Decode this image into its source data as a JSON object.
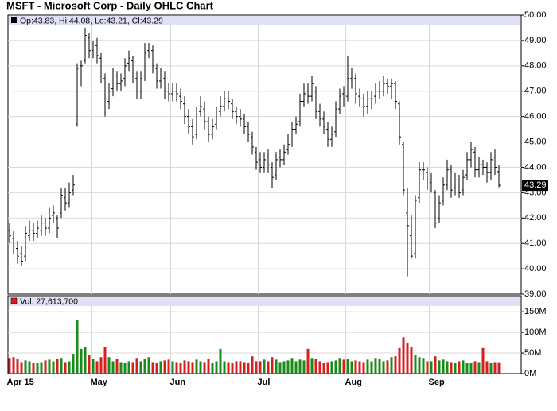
{
  "chart_data": [
    {
      "type": "ohlc",
      "title": "MSFT - Microsoft Corp - Daily OHLC Chart",
      "header": "Op:43.83, Hi:44.08, Lo:43.21, Cl:43.29",
      "categories": [
        "Apr 15",
        null,
        null,
        null,
        null,
        null,
        null,
        null,
        null,
        null,
        null,
        null,
        null,
        null,
        null,
        null,
        null,
        null,
        null,
        null,
        null,
        "May",
        null,
        null,
        null,
        null,
        null,
        null,
        null,
        null,
        null,
        null,
        null,
        null,
        null,
        null,
        null,
        null,
        null,
        null,
        null,
        "Jun",
        null,
        null,
        null,
        null,
        null,
        null,
        null,
        null,
        null,
        null,
        null,
        null,
        null,
        null,
        null,
        null,
        null,
        null,
        null,
        null,
        null,
        "Jul",
        null,
        null,
        null,
        null,
        null,
        null,
        null,
        null,
        null,
        null,
        null,
        null,
        null,
        null,
        null,
        null,
        null,
        null,
        null,
        null,
        null,
        "Aug",
        null,
        null,
        null,
        null,
        null,
        null,
        null,
        null,
        null,
        null,
        null,
        null,
        null,
        null,
        null,
        null,
        null,
        null,
        null,
        null,
        "Sep",
        null,
        null,
        null,
        null,
        null,
        null,
        null,
        null,
        null,
        null,
        null,
        null,
        null,
        null,
        null,
        null,
        null
      ],
      "open": [
        41.5,
        41.2,
        40.8,
        40.6,
        40.5,
        41.3,
        41.5,
        41.4,
        41.5,
        41.8,
        41.6,
        42.1,
        42.0,
        42.2,
        42.8,
        42.6,
        43.1,
        45.7,
        48.0,
        48.2,
        49.1,
        48.6,
        48.8,
        48.3,
        47.5,
        46.6,
        47.1,
        47.6,
        47.3,
        47.5,
        48.1,
        48.2,
        47.5,
        47.0,
        47.6,
        48.6,
        48.6,
        47.9,
        47.4,
        47.5,
        47.0,
        46.9,
        47.0,
        46.8,
        46.5,
        46.0,
        45.6,
        45.3,
        46.2,
        46.3,
        45.8,
        45.3,
        45.7,
        46.2,
        46.4,
        46.7,
        46.5,
        46.2,
        46.0,
        45.9,
        45.6,
        45.2,
        44.6,
        44.3,
        44.0,
        44.4,
        44.0,
        43.7,
        44.4,
        44.3,
        44.7,
        45.0,
        45.5,
        45.8,
        46.6,
        47.0,
        46.8,
        47.0,
        46.2,
        45.9,
        45.5,
        45.1,
        45.4,
        46.3,
        46.9,
        46.8,
        47.5,
        47.5,
        46.8,
        46.7,
        46.4,
        46.7,
        46.8,
        47.0,
        47.0,
        47.3,
        47.2,
        47.3,
        46.5,
        44.9,
        42.2,
        41.3,
        40.6,
        42.8,
        43.9,
        43.8,
        43.4,
        43.0,
        42.0,
        42.7,
        43.3,
        43.9,
        43.2,
        43.5,
        43.1,
        43.7,
        44.3,
        44.6,
        43.9,
        44.1,
        44.0,
        43.8,
        44.4,
        43.83
      ],
      "high": [
        41.8,
        41.5,
        41.1,
        40.9,
        41.7,
        41.9,
        41.8,
        41.9,
        42.1,
        42.0,
        42.4,
        42.5,
        42.1,
        43.2,
        43.2,
        43.4,
        43.7,
        48.1,
        48.2,
        49.5,
        49.3,
        49.0,
        49.1,
        48.5,
        47.7,
        47.3,
        47.9,
        47.8,
        47.7,
        48.3,
        48.6,
        48.4,
        47.8,
        47.8,
        48.9,
        48.9,
        48.8,
        48.1,
        47.9,
        47.8,
        47.3,
        47.3,
        47.3,
        47.1,
        46.8,
        46.3,
        45.9,
        46.4,
        46.8,
        46.6,
        46.0,
        45.9,
        46.4,
        46.8,
        47.0,
        47.0,
        46.7,
        46.4,
        46.3,
        46.1,
        45.8,
        45.4,
        44.8,
        44.6,
        44.6,
        44.7,
        44.2,
        44.6,
        44.7,
        44.9,
        45.3,
        45.8,
        46.0,
        46.9,
        47.3,
        47.3,
        47.6,
        47.2,
        46.5,
        46.2,
        45.8,
        45.6,
        46.6,
        47.1,
        47.2,
        48.4,
        47.9,
        47.7,
        47.1,
        46.9,
        47.0,
        47.0,
        47.3,
        47.4,
        47.6,
        47.5,
        47.5,
        47.4,
        46.6,
        45.0,
        43.2,
        42.1,
        42.9,
        44.2,
        44.2,
        44.0,
        43.8,
        43.1,
        42.9,
        43.6,
        44.3,
        44.1,
        43.8,
        43.7,
        43.9,
        44.6,
        45.0,
        44.8,
        44.4,
        44.3,
        44.2,
        44.6,
        44.7,
        44.08
      ],
      "low": [
        41.0,
        40.6,
        40.2,
        40.1,
        40.3,
        41.1,
        41.1,
        41.2,
        41.3,
        41.3,
        41.4,
        41.8,
        41.2,
        42.0,
        42.3,
        42.4,
        42.9,
        45.6,
        47.2,
        48.1,
        48.3,
        48.3,
        48.1,
        47.3,
        46.0,
        46.3,
        46.8,
        47.0,
        47.0,
        47.2,
        47.8,
        47.3,
        46.7,
        46.7,
        47.4,
        48.3,
        47.7,
        47.1,
        47.1,
        46.7,
        46.6,
        46.6,
        46.6,
        46.3,
        45.7,
        45.3,
        44.9,
        45.1,
        46.0,
        45.5,
        45.0,
        45.1,
        45.5,
        46.0,
        46.2,
        46.3,
        45.9,
        45.7,
        45.6,
        45.3,
        45.0,
        44.5,
        43.9,
        43.8,
        43.8,
        43.8,
        43.2,
        43.5,
        44.0,
        44.1,
        44.5,
        44.8,
        45.3,
        45.6,
        46.4,
        46.5,
        46.6,
        45.9,
        45.6,
        45.3,
        44.8,
        44.8,
        45.2,
        46.1,
        46.4,
        46.6,
        47.1,
        46.5,
        46.4,
        46.0,
        46.1,
        46.3,
        46.5,
        46.7,
        46.8,
        46.9,
        46.7,
        46.3,
        44.9,
        42.9,
        39.7,
        40.4,
        40.4,
        42.6,
        43.5,
        43.1,
        43.0,
        41.6,
        41.8,
        42.5,
        43.1,
        42.8,
        42.9,
        42.8,
        42.9,
        43.5,
        44.0,
        43.6,
        43.6,
        43.7,
        43.4,
        43.5,
        43.7,
        43.21
      ],
      "close": [
        41.3,
        40.9,
        40.5,
        40.3,
        41.4,
        41.5,
        41.4,
        41.6,
        41.8,
        41.6,
        42.0,
        42.2,
        41.6,
        42.9,
        42.6,
        43.0,
        43.3,
        47.9,
        48.0,
        49.2,
        48.6,
        48.7,
        48.4,
        47.6,
        46.7,
        47.0,
        47.6,
        47.3,
        47.4,
        48.0,
        48.3,
        47.6,
        47.0,
        47.5,
        48.5,
        48.7,
        48.0,
        47.4,
        47.6,
        47.0,
        46.9,
        47.0,
        46.9,
        46.6,
        46.0,
        45.6,
        45.2,
        46.1,
        46.4,
        45.8,
        45.3,
        45.6,
        46.1,
        46.4,
        46.7,
        46.6,
        46.2,
        46.0,
        45.9,
        45.6,
        45.3,
        44.8,
        44.2,
        44.0,
        44.3,
        44.1,
        43.6,
        44.3,
        44.3,
        44.6,
        44.9,
        45.5,
        45.7,
        46.6,
        46.9,
        46.8,
        47.3,
        46.2,
        45.9,
        45.6,
        45.1,
        45.3,
        46.3,
        46.8,
        46.7,
        47.5,
        47.6,
        46.9,
        46.7,
        46.4,
        46.7,
        46.7,
        47.0,
        47.0,
        47.3,
        47.2,
        47.3,
        46.6,
        45.2,
        43.1,
        41.7,
        40.5,
        42.7,
        43.9,
        43.9,
        43.5,
        43.5,
        41.8,
        42.6,
        43.3,
        43.9,
        43.1,
        43.5,
        43.0,
        43.6,
        44.3,
        44.7,
        43.9,
        44.1,
        44.0,
        43.8,
        44.3,
        44.0,
        43.29
      ],
      "color": "#000000",
      "last_price": 43.29,
      "ylim": [
        39,
        50
      ],
      "yticks": [
        {
          "value": 39,
          "label": "39.00"
        },
        {
          "value": 40,
          "label": "40.00"
        },
        {
          "value": 41,
          "label": "41.00"
        },
        {
          "value": 42,
          "label": "42.00"
        },
        {
          "value": 43,
          "label": "43.00"
        },
        {
          "value": 44,
          "label": "44.00"
        },
        {
          "value": 45,
          "label": "45.00"
        },
        {
          "value": 46,
          "label": "46.00"
        },
        {
          "value": 47,
          "label": "47.00"
        },
        {
          "value": 48,
          "label": "48.00"
        },
        {
          "value": 49,
          "label": "49.00"
        },
        {
          "value": 50,
          "label": "50.00"
        }
      ],
      "grid": true
    },
    {
      "type": "bar",
      "header": "Vol: 27,613,700",
      "values": [
        38,
        40,
        36,
        28,
        32,
        30,
        25,
        26,
        28,
        32,
        34,
        30,
        36,
        38,
        28,
        30,
        48,
        130,
        60,
        65,
        45,
        35,
        30,
        40,
        65,
        40,
        30,
        35,
        28,
        26,
        30,
        28,
        38,
        30,
        35,
        40,
        28,
        25,
        30,
        32,
        34,
        30,
        28,
        26,
        32,
        30,
        28,
        34,
        30,
        28,
        35,
        26,
        30,
        60,
        30,
        28,
        26,
        30,
        30,
        28,
        25,
        42,
        30,
        30,
        34,
        30,
        40,
        34,
        28,
        30,
        32,
        38,
        30,
        34,
        32,
        60,
        38,
        36,
        30,
        26,
        28,
        30,
        32,
        38,
        34,
        36,
        30,
        32,
        30,
        28,
        34,
        30,
        38,
        35,
        30,
        32,
        40,
        42,
        62,
        88,
        75,
        65,
        45,
        40,
        38,
        30,
        30,
        42,
        32,
        34,
        30,
        28,
        26,
        30,
        32,
        26,
        25,
        30,
        28,
        62,
        30,
        26,
        28,
        27.6137
      ],
      "up_color": "#1a8a1a",
      "down_color": "#d42020",
      "ylim": [
        0,
        185
      ],
      "yticks": [
        {
          "value": 0,
          "label": "0M"
        },
        {
          "value": 50,
          "label": "50M"
        },
        {
          "value": 100,
          "label": "100M"
        },
        {
          "value": 150,
          "label": "150M"
        }
      ],
      "grid": true
    }
  ]
}
